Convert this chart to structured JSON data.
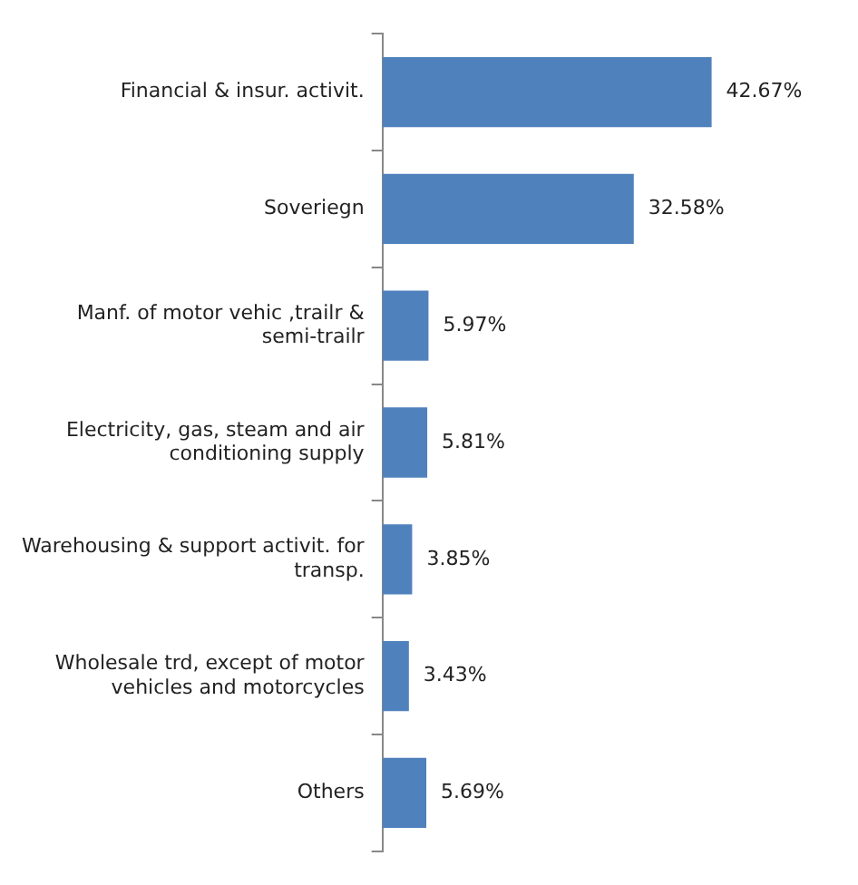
{
  "chart_data": {
    "type": "bar",
    "orientation": "horizontal",
    "categories": [
      "Financial & insur. activit.",
      "Soveriegn",
      "Manf. of motor vehic ,trailr & semi-trailr",
      "Electricity, gas, steam and air conditioning supply",
      "Warehousing & support activit. for transp.",
      "Wholesale trd, except of motor vehicles and motorcycles",
      "Others"
    ],
    "values": [
      42.67,
      32.58,
      5.97,
      5.81,
      3.85,
      3.43,
      5.69
    ],
    "value_labels": [
      "42.67%",
      "32.58%",
      "5.97%",
      "5.81%",
      "3.85%",
      "3.43%",
      "5.69%"
    ],
    "color": "#4f81bd",
    "grid": false,
    "legend": false
  }
}
